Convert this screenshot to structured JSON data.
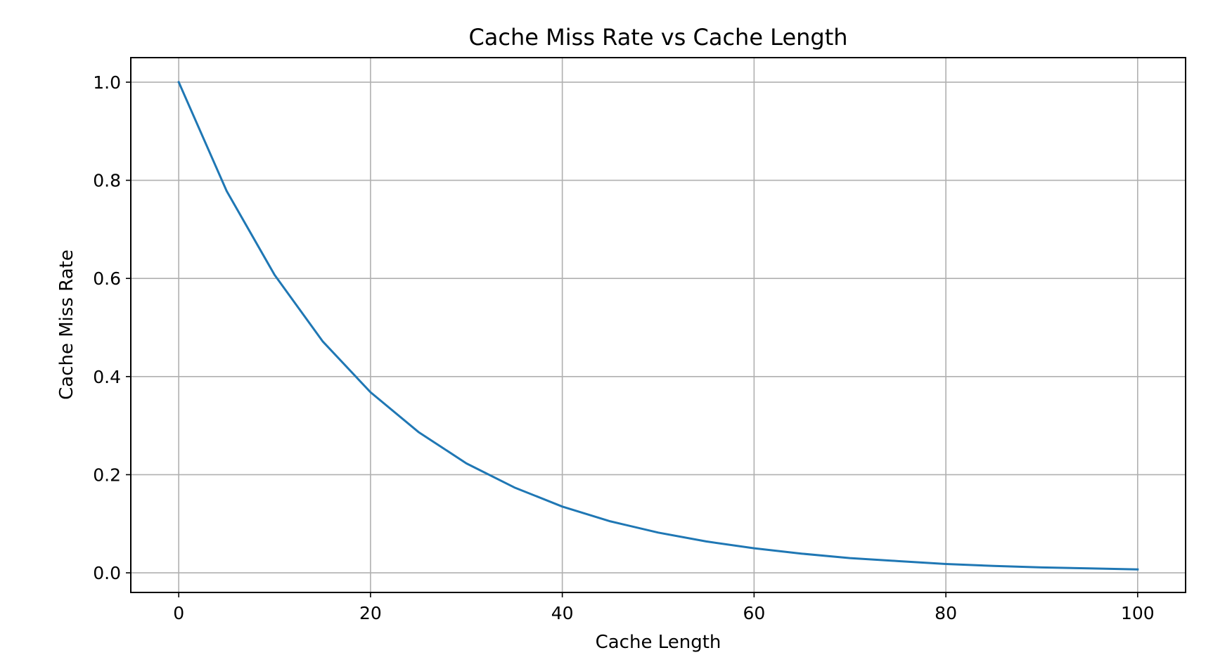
{
  "chart_data": {
    "type": "line",
    "title": "Cache Miss Rate vs Cache Length",
    "xlabel": "Cache Length",
    "ylabel": "Cache Miss Rate",
    "xlim": [
      -5,
      105
    ],
    "ylim": [
      -0.04,
      1.05
    ],
    "xticks": [
      0,
      20,
      40,
      60,
      80,
      100
    ],
    "yticks": [
      0.0,
      0.2,
      0.4,
      0.6,
      0.8,
      1.0
    ],
    "xtick_labels": [
      "0",
      "20",
      "40",
      "60",
      "80",
      "100"
    ],
    "ytick_labels": [
      "0.0",
      "0.2",
      "0.4",
      "0.6",
      "0.8",
      "1.0"
    ],
    "grid": true,
    "series": [
      {
        "color": "#1f77b4",
        "x": [
          0,
          5,
          10,
          15,
          20,
          25,
          30,
          35,
          40,
          45,
          50,
          55,
          60,
          65,
          70,
          75,
          80,
          85,
          90,
          95,
          100
        ],
        "y": [
          1.0,
          0.778,
          0.607,
          0.472,
          0.368,
          0.287,
          0.223,
          0.174,
          0.135,
          0.105,
          0.082,
          0.064,
          0.05,
          0.039,
          0.03,
          0.024,
          0.018,
          0.014,
          0.011,
          0.009,
          0.007
        ]
      }
    ]
  }
}
